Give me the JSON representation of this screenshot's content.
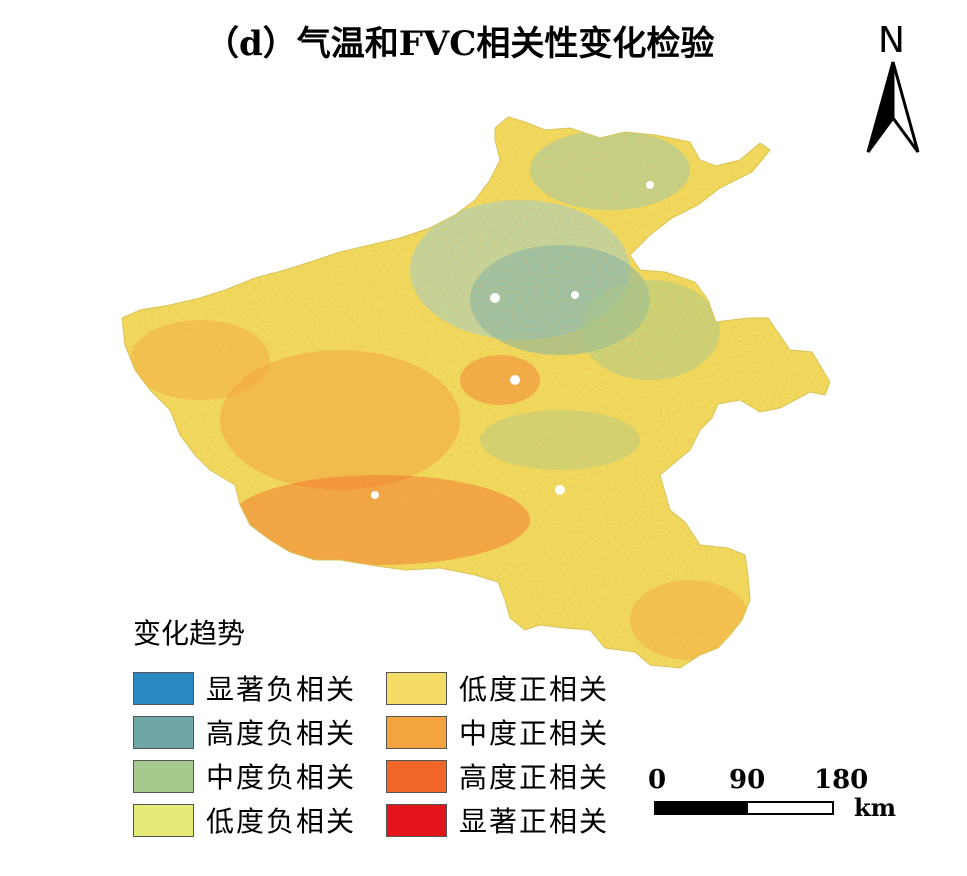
{
  "title": "（d）气温和FVC相关性变化检验",
  "north_label": "N",
  "legend": {
    "title": "变化趋势",
    "items": [
      {
        "label": "显著负相关",
        "color": "#2b8ac4"
      },
      {
        "label": "高度负相关",
        "color": "#6fa7a9"
      },
      {
        "label": "中度负相关",
        "color": "#a6c98e"
      },
      {
        "label": "低度负相关",
        "color": "#e5ea78"
      },
      {
        "label": "低度正相关",
        "color": "#f5dc66"
      },
      {
        "label": "中度正相关",
        "color": "#f4a43f"
      },
      {
        "label": "高度正相关",
        "color": "#f26728"
      },
      {
        "label": "显著正相关",
        "color": "#e3141c"
      }
    ]
  },
  "scalebar": {
    "ticks": [
      "0",
      "90",
      "180"
    ],
    "unit": "km"
  },
  "map_colors": {
    "base": "#f0d95c",
    "blue_zone": "#7fb3a8",
    "red_zone": "#e3141c",
    "orange_zone": "#f26728"
  }
}
